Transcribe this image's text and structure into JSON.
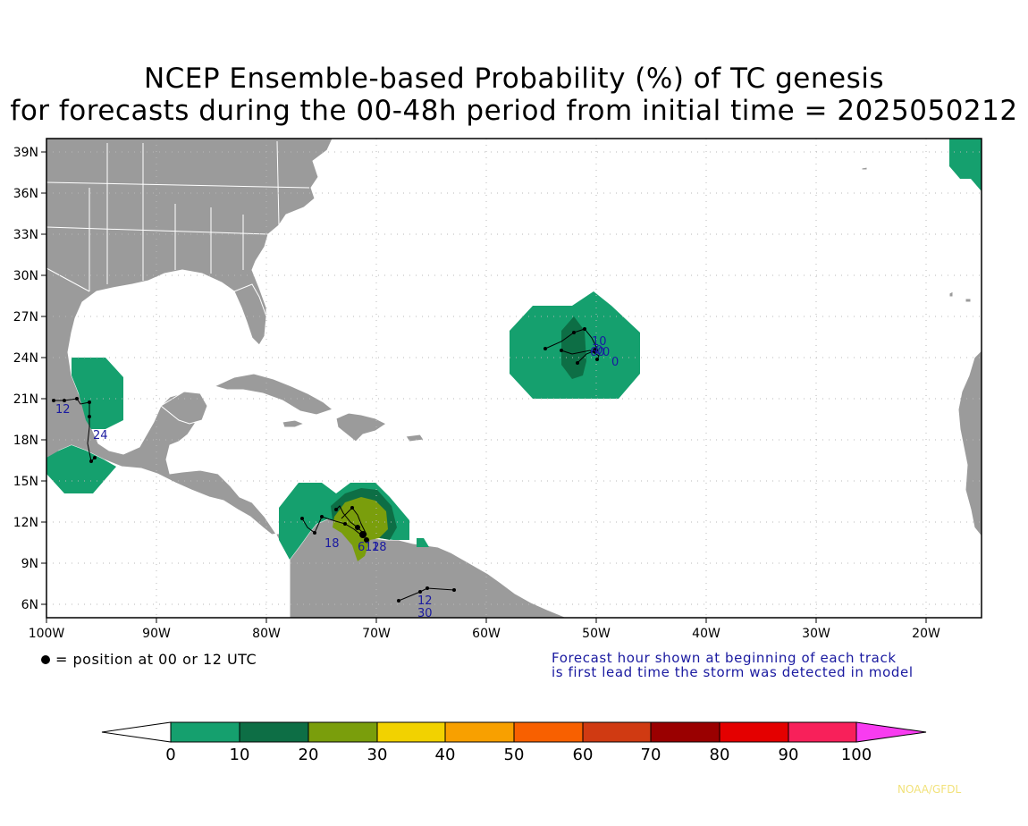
{
  "title": {
    "line1": "NCEP Ensemble-based Probability (%) of TC genesis",
    "line2": "for forecasts during the 00-48h period from initial time = 2025050212"
  },
  "map": {
    "lat_labels": [
      "39N",
      "36N",
      "33N",
      "30N",
      "27N",
      "24N",
      "21N",
      "18N",
      "15N",
      "12N",
      "9N",
      "6N"
    ],
    "lon_labels": [
      "100W",
      "90W",
      "80W",
      "70W",
      "60W",
      "50W",
      "40W",
      "30W",
      "20W"
    ],
    "land_color": "#9b9b9b",
    "ocean_color": "#ffffff",
    "track_labels": [
      "12",
      "24",
      "18",
      "6",
      "12",
      "18",
      "0",
      "10",
      "0",
      "60",
      "0",
      "12",
      "30"
    ]
  },
  "legend": {
    "dot_text": "= position at 00 or 12 UTC",
    "note_line1": "Forecast hour shown at beginning of each track",
    "note_line2": "is first lead time the storm was detected in model"
  },
  "colorbar": {
    "ticks": [
      "0",
      "10",
      "20",
      "30",
      "40",
      "50",
      "60",
      "70",
      "80",
      "90",
      "100"
    ],
    "colors": [
      "#15a06e",
      "#0d6e45",
      "#7a9e0c",
      "#f2d200",
      "#f8a000",
      "#f86000",
      "#d03a12",
      "#9a0000",
      "#e40000",
      "#f8205a"
    ],
    "under_color": "#ffffff",
    "over_color": "#f83cf0"
  },
  "credit": "NOAA/GFDL"
}
